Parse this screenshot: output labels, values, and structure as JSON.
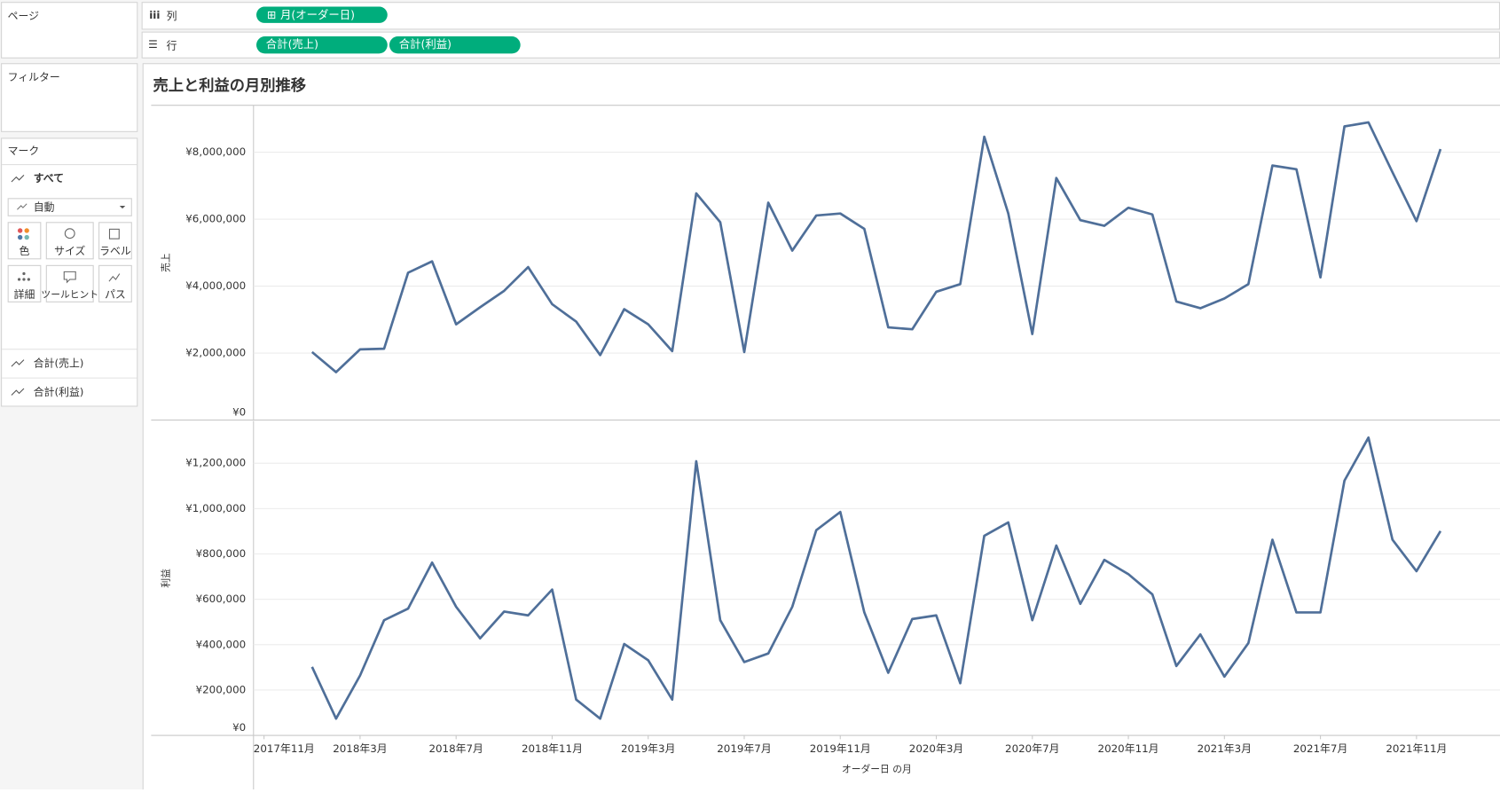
{
  "ui": {
    "pages_label": "ページ",
    "filters_label": "フィルター",
    "marks_label": "マーク",
    "marks_all": "すべて",
    "mark_type": "自動",
    "buttons": [
      "色",
      "サイズ",
      "ラベル",
      "詳細",
      "ツールヒント",
      "パス"
    ],
    "mark_cards": [
      "合計(売上)",
      "合計(利益)"
    ],
    "columns_label": "列",
    "rows_label": "行",
    "columns_pills": [
      "月(オーダー日)"
    ],
    "rows_pills": [
      "合計(売上)",
      "合計(利益)"
    ],
    "title": "売上と利益の月別推移"
  },
  "chart_data": [
    {
      "type": "line",
      "y_label": "売上",
      "color": "#4f6f99",
      "grid": true,
      "x": [
        "2018-01",
        "2018-02",
        "2018-03",
        "2018-04",
        "2018-05",
        "2018-06",
        "2018-07",
        "2018-08",
        "2018-09",
        "2018-10",
        "2018-11",
        "2018-12",
        "2019-01",
        "2019-02",
        "2019-03",
        "2019-04",
        "2019-05",
        "2019-06",
        "2019-07",
        "2019-08",
        "2019-09",
        "2019-10",
        "2019-11",
        "2019-12",
        "2020-01",
        "2020-02",
        "2020-03",
        "2020-04",
        "2020-05",
        "2020-06",
        "2020-07",
        "2020-08",
        "2020-09",
        "2020-10",
        "2020-11",
        "2020-12",
        "2021-01",
        "2021-02",
        "2021-03",
        "2021-04",
        "2021-05",
        "2021-06",
        "2021-07",
        "2021-08",
        "2021-09",
        "2021-10",
        "2021-11",
        "2021-12"
      ],
      "xlim": [
        "2017-11",
        "2022-02"
      ],
      "values": [
        2030000,
        1430000,
        2110000,
        2130000,
        4400000,
        4740000,
        2860000,
        3370000,
        3860000,
        4570000,
        3460000,
        2940000,
        1940000,
        3310000,
        2860000,
        2060000,
        6770000,
        5910000,
        2030000,
        6490000,
        5060000,
        6110000,
        6170000,
        5710000,
        2770000,
        2710000,
        3830000,
        4060000,
        8460000,
        6170000,
        2570000,
        7230000,
        5970000,
        5800000,
        6340000,
        6140000,
        3540000,
        3340000,
        3630000,
        4060000,
        7600000,
        7490000,
        4260000,
        8770000,
        8890000,
        7400000,
        5940000,
        8090000
      ],
      "ylim": [
        0,
        9400000
      ],
      "yticks": [
        {
          "value": 0,
          "label": "¥0"
        },
        {
          "value": 2000000,
          "label": "¥2,000,000"
        },
        {
          "value": 4000000,
          "label": "¥4,000,000"
        },
        {
          "value": 6000000,
          "label": "¥6,000,000"
        },
        {
          "value": 8000000,
          "label": "¥8,000,000"
        }
      ]
    },
    {
      "type": "line",
      "y_label": "利益",
      "x_label": "オーダー日 の月",
      "color": "#4f6f99",
      "grid": true,
      "x": [
        "2018-01",
        "2018-02",
        "2018-03",
        "2018-04",
        "2018-05",
        "2018-06",
        "2018-07",
        "2018-08",
        "2018-09",
        "2018-10",
        "2018-11",
        "2018-12",
        "2019-01",
        "2019-02",
        "2019-03",
        "2019-04",
        "2019-05",
        "2019-06",
        "2019-07",
        "2019-08",
        "2019-09",
        "2019-10",
        "2019-11",
        "2019-12",
        "2020-01",
        "2020-02",
        "2020-03",
        "2020-04",
        "2020-05",
        "2020-06",
        "2020-07",
        "2020-08",
        "2020-09",
        "2020-10",
        "2020-11",
        "2020-12",
        "2021-01",
        "2021-02",
        "2021-03",
        "2021-04",
        "2021-05",
        "2021-06",
        "2021-07",
        "2021-08",
        "2021-09",
        "2021-10",
        "2021-11",
        "2021-12"
      ],
      "xlim": [
        "2017-11",
        "2022-02"
      ],
      "xticks": [
        {
          "value": "2017-11",
          "label": "2017年11月"
        },
        {
          "value": "2018-03",
          "label": "2018年3月"
        },
        {
          "value": "2018-07",
          "label": "2018年7月"
        },
        {
          "value": "2018-11",
          "label": "2018年11月"
        },
        {
          "value": "2019-03",
          "label": "2019年3月"
        },
        {
          "value": "2019-07",
          "label": "2019年7月"
        },
        {
          "value": "2019-11",
          "label": "2019年11月"
        },
        {
          "value": "2020-03",
          "label": "2020年3月"
        },
        {
          "value": "2020-07",
          "label": "2020年7月"
        },
        {
          "value": "2020-11",
          "label": "2020年11月"
        },
        {
          "value": "2021-03",
          "label": "2021年3月"
        },
        {
          "value": "2021-07",
          "label": "2021年7月"
        },
        {
          "value": "2021-11",
          "label": "2021年11月"
        }
      ],
      "values": [
        302000,
        74000,
        264000,
        508000,
        559000,
        762000,
        567000,
        428000,
        546000,
        529000,
        643000,
        158000,
        74000,
        403000,
        331000,
        158000,
        1209000,
        508000,
        323000,
        361000,
        567000,
        905000,
        985000,
        542000,
        276000,
        513000,
        529000,
        230000,
        880000,
        939000,
        508000,
        837000,
        580000,
        774000,
        711000,
        622000,
        306000,
        445000,
        259000,
        407000,
        863000,
        542000,
        542000,
        1123000,
        1313000,
        863000,
        724000,
        901000
      ],
      "ylim": [
        0,
        1386000
      ],
      "yticks": [
        {
          "value": 0,
          "label": "¥0"
        },
        {
          "value": 200000,
          "label": "¥200,000"
        },
        {
          "value": 400000,
          "label": "¥400,000"
        },
        {
          "value": 600000,
          "label": "¥600,000"
        },
        {
          "value": 800000,
          "label": "¥800,000"
        },
        {
          "value": 1000000,
          "label": "¥1,000,000"
        },
        {
          "value": 1200000,
          "label": "¥1,200,000"
        }
      ]
    }
  ]
}
